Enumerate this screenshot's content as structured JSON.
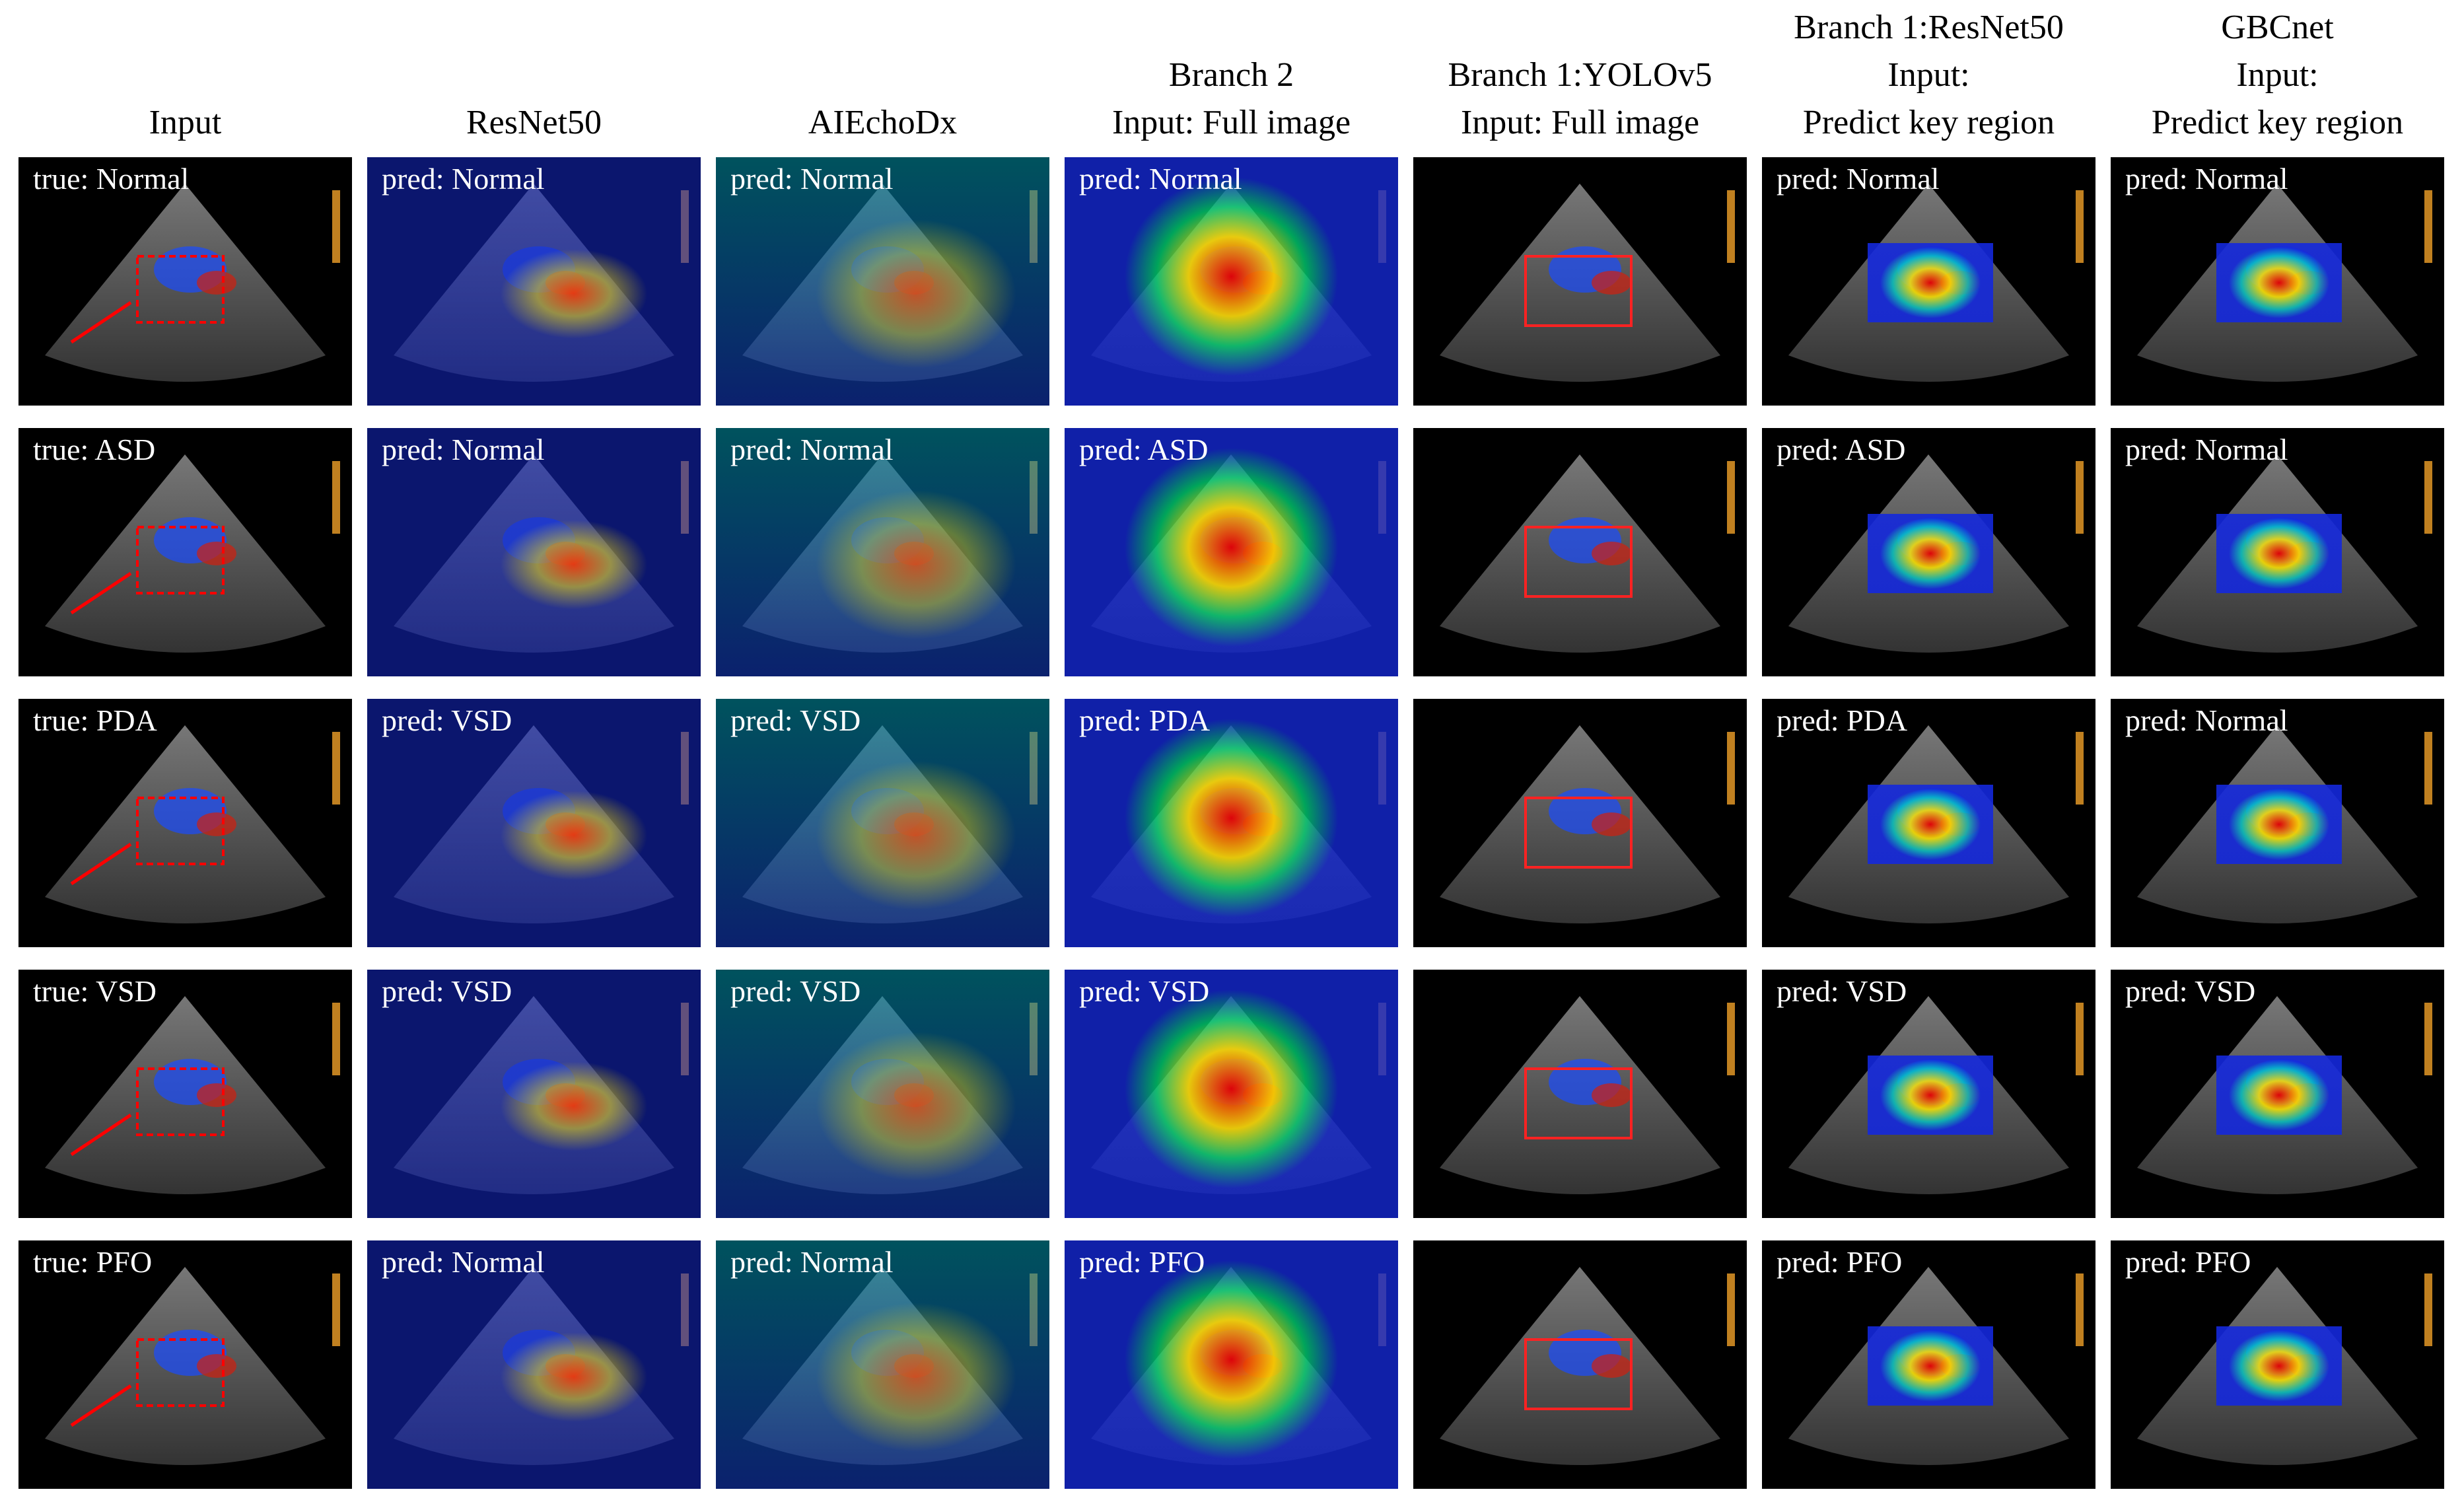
{
  "headers": [
    [
      "Input"
    ],
    [
      "ResNet50"
    ],
    [
      "AIEchoDx"
    ],
    [
      "Branch 2",
      "Input: Full image"
    ],
    [
      "Branch 1:YOLOv5",
      "Input: Full image"
    ],
    [
      "Branch 1:ResNet50",
      "Input:",
      "Predict key region"
    ],
    [
      "GBCnet",
      "Input:",
      "Predict key region"
    ]
  ],
  "rows": [
    {
      "labels": [
        "true: Normal",
        "pred: Normal",
        "pred: Normal",
        "pred: Normal",
        null,
        "pred: Normal",
        "pred: Normal"
      ]
    },
    {
      "labels": [
        "true: ASD",
        "pred: Normal",
        "pred: Normal",
        "pred: ASD",
        null,
        "pred: ASD",
        "pred: Normal"
      ]
    },
    {
      "labels": [
        "true: PDA",
        "pred: VSD",
        "pred: VSD",
        "pred: PDA",
        null,
        "pred: PDA",
        "pred: Normal"
      ]
    },
    {
      "labels": [
        "true: VSD",
        "pred: VSD",
        "pred: VSD",
        "pred: VSD",
        null,
        "pred: VSD",
        "pred: VSD"
      ]
    },
    {
      "labels": [
        "true: PFO",
        "pred: Normal",
        "pred: Normal",
        "pred: PFO",
        null,
        "pred: PFO",
        "pred: PFO"
      ]
    }
  ]
}
